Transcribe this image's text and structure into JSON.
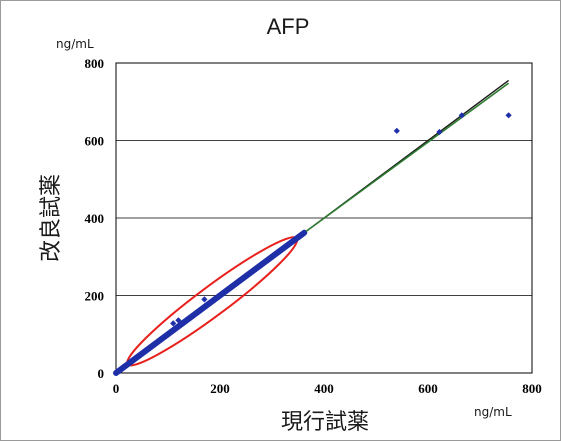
{
  "chart_data": {
    "type": "scatter",
    "title": "AFP",
    "xlabel": "現行試薬",
    "ylabel": "改良試薬",
    "x_unit": "ng/mL",
    "y_unit": "ng/mL",
    "xlim": [
      0,
      800
    ],
    "ylim": [
      0,
      800
    ],
    "x_ticks": [
      "0",
      "200",
      "400",
      "600",
      "800"
    ],
    "y_ticks": [
      "0",
      "200",
      "400",
      "600",
      "800"
    ],
    "grid": "horizontal",
    "colors": {
      "points": "#1f2fa8",
      "regression": "#2e7d32",
      "identity": "#1b1b1b",
      "ellipse": "#e8201c"
    },
    "points": [
      [
        5,
        5
      ],
      [
        12,
        14
      ],
      [
        25,
        24
      ],
      [
        40,
        41
      ],
      [
        55,
        54
      ],
      [
        70,
        71
      ],
      [
        85,
        86
      ],
      [
        100,
        99
      ],
      [
        110,
        128
      ],
      [
        120,
        136
      ],
      [
        130,
        131
      ],
      [
        145,
        146
      ],
      [
        160,
        159
      ],
      [
        170,
        190
      ],
      [
        175,
        176
      ],
      [
        190,
        191
      ],
      [
        205,
        204
      ],
      [
        220,
        221
      ],
      [
        235,
        234
      ],
      [
        250,
        251
      ],
      [
        265,
        264
      ],
      [
        280,
        281
      ],
      [
        295,
        296
      ],
      [
        310,
        309
      ],
      [
        325,
        326
      ],
      [
        340,
        341
      ],
      [
        350,
        351
      ],
      [
        358,
        357
      ],
      [
        362,
        362
      ],
      [
        540,
        625
      ],
      [
        622,
        622
      ],
      [
        665,
        665
      ],
      [
        755,
        665
      ]
    ],
    "regression_line": {
      "x": [
        360,
        755
      ],
      "y": [
        360,
        748
      ]
    },
    "identity_line": {
      "x": [
        360,
        755
      ],
      "y": [
        360,
        755
      ]
    },
    "dense_band": {
      "x": [
        0,
        362
      ],
      "y": [
        0,
        362
      ]
    },
    "ellipse": {
      "cx": 185,
      "cy": 185,
      "major": 230,
      "minor": 28,
      "angle_deg": 45
    }
  }
}
